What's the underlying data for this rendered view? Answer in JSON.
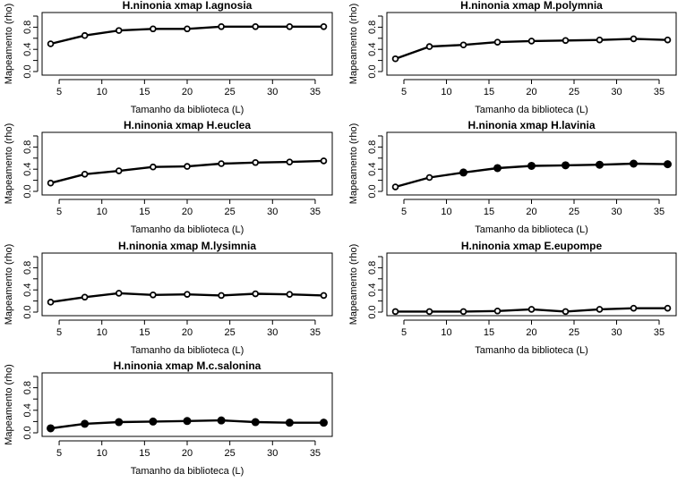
{
  "figure": {
    "xlabel": "Tamanho da biblioteca (L)",
    "ylabel": "Mapeamento (rho)",
    "x_ticks": [
      5,
      10,
      15,
      20,
      25,
      30,
      35
    ],
    "y_ticks": [
      0.0,
      0.4,
      0.8
    ],
    "y_tick_labels": [
      "0.0",
      "0.4",
      "0.8"
    ]
  },
  "chart_data": [
    {
      "type": "line",
      "title": "H.ninonia xmap I.agnosia",
      "xlabel": "Tamanho da biblioteca (L)",
      "ylabel": "Mapeamento (rho)",
      "xlim": [
        3,
        37
      ],
      "ylim": [
        0,
        1
      ],
      "grid": false,
      "x": [
        4,
        8,
        12,
        16,
        20,
        24,
        28,
        32,
        36
      ],
      "y": [
        0.5,
        0.65,
        0.74,
        0.77,
        0.77,
        0.81,
        0.81,
        0.81,
        0.81
      ],
      "filled_points": [
        false,
        false,
        false,
        false,
        false,
        false,
        false,
        false,
        false
      ]
    },
    {
      "type": "line",
      "title": "H.ninonia xmap M.polymnia",
      "xlabel": "Tamanho da biblioteca (L)",
      "ylabel": "Mapeamento (rho)",
      "xlim": [
        3,
        37
      ],
      "ylim": [
        0,
        1
      ],
      "grid": false,
      "x": [
        4,
        8,
        12,
        16,
        20,
        24,
        28,
        32,
        36
      ],
      "y": [
        0.23,
        0.45,
        0.48,
        0.53,
        0.55,
        0.56,
        0.57,
        0.59,
        0.57
      ],
      "filled_points": [
        false,
        false,
        false,
        false,
        false,
        false,
        false,
        false,
        false
      ]
    },
    {
      "type": "line",
      "title": "H.ninonia xmap H.euclea",
      "xlabel": "Tamanho da biblioteca (L)",
      "ylabel": "Mapeamento (rho)",
      "xlim": [
        3,
        37
      ],
      "ylim": [
        0,
        1
      ],
      "grid": false,
      "x": [
        4,
        8,
        12,
        16,
        20,
        24,
        28,
        32,
        36
      ],
      "y": [
        0.15,
        0.31,
        0.37,
        0.44,
        0.45,
        0.5,
        0.52,
        0.53,
        0.55
      ],
      "filled_points": [
        false,
        false,
        false,
        false,
        false,
        false,
        false,
        false,
        false
      ]
    },
    {
      "type": "line",
      "title": "H.ninonia xmap H.lavinia",
      "xlabel": "Tamanho da biblioteca (L)",
      "ylabel": "Mapeamento (rho)",
      "xlim": [
        3,
        37
      ],
      "ylim": [
        0,
        1
      ],
      "grid": false,
      "x": [
        4,
        8,
        12,
        16,
        20,
        24,
        28,
        32,
        36
      ],
      "y": [
        0.08,
        0.25,
        0.34,
        0.42,
        0.46,
        0.47,
        0.48,
        0.5,
        0.49
      ],
      "filled_points": [
        false,
        false,
        true,
        true,
        true,
        true,
        true,
        true,
        true
      ]
    },
    {
      "type": "line",
      "title": "H.ninonia xmap M.lysimnia",
      "xlabel": "Tamanho da biblioteca (L)",
      "ylabel": "Mapeamento (rho)",
      "xlim": [
        3,
        37
      ],
      "ylim": [
        0,
        1
      ],
      "grid": false,
      "x": [
        4,
        8,
        12,
        16,
        20,
        24,
        28,
        32,
        36
      ],
      "y": [
        0.18,
        0.27,
        0.34,
        0.31,
        0.32,
        0.3,
        0.33,
        0.32,
        0.3
      ],
      "filled_points": [
        false,
        false,
        false,
        false,
        false,
        false,
        false,
        false,
        false
      ]
    },
    {
      "type": "line",
      "title": "H.ninonia xmap E.eupompe",
      "xlabel": "Tamanho da biblioteca (L)",
      "ylabel": "Mapeamento (rho)",
      "xlim": [
        3,
        37
      ],
      "ylim": [
        0,
        1
      ],
      "grid": false,
      "x": [
        4,
        8,
        12,
        16,
        20,
        24,
        28,
        32,
        36
      ],
      "y": [
        0.01,
        0.01,
        0.01,
        0.02,
        0.05,
        0.01,
        0.05,
        0.07,
        0.07
      ],
      "filled_points": [
        false,
        false,
        false,
        false,
        false,
        false,
        false,
        false,
        false
      ]
    },
    {
      "type": "line",
      "title": "H.ninonia xmap M.c.salonina",
      "xlabel": "Tamanho da biblioteca (L)",
      "ylabel": "Mapeamento (rho)",
      "xlim": [
        3,
        37
      ],
      "ylim": [
        0,
        1
      ],
      "grid": false,
      "x": [
        4,
        8,
        12,
        16,
        20,
        24,
        28,
        32,
        36
      ],
      "y": [
        0.08,
        0.16,
        0.19,
        0.2,
        0.21,
        0.22,
        0.19,
        0.18,
        0.18
      ],
      "filled_points": [
        true,
        true,
        true,
        true,
        true,
        true,
        true,
        true,
        true
      ]
    }
  ]
}
